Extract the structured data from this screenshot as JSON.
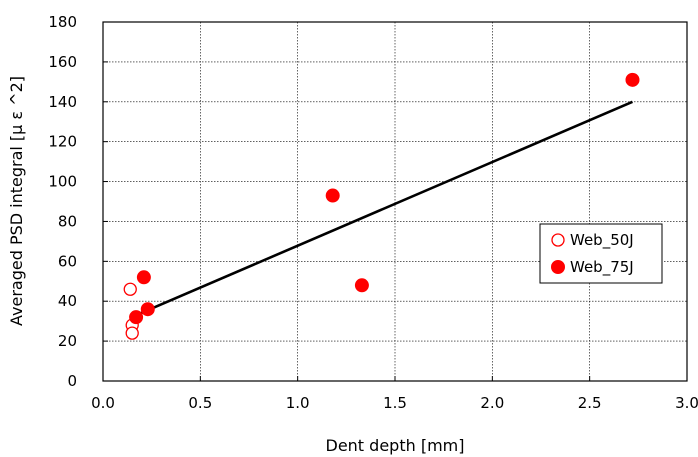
{
  "chart_data": {
    "type": "scatter",
    "title": "",
    "xlabel": "Dent depth [mm]",
    "ylabel": "Averaged PSD integral [μ ε ^2]",
    "xlim": [
      0,
      3
    ],
    "ylim": [
      0,
      180
    ],
    "x_ticks": [
      "0.0",
      "0.5",
      "1.0",
      "1.5",
      "2.0",
      "2.5",
      "3.0"
    ],
    "y_ticks": [
      "0",
      "20",
      "40",
      "60",
      "80",
      "100",
      "120",
      "140",
      "160",
      "180"
    ],
    "grid": true,
    "legend_position": "right",
    "series": [
      {
        "name": "Web_50J",
        "marker": "open-circle",
        "color": "#ff0000",
        "points": [
          {
            "x": 0.14,
            "y": 46
          },
          {
            "x": 0.15,
            "y": 28
          },
          {
            "x": 0.15,
            "y": 24
          }
        ]
      },
      {
        "name": "Web_75J",
        "marker": "filled-circle",
        "color": "#ff0000",
        "points": [
          {
            "x": 0.17,
            "y": 32
          },
          {
            "x": 0.21,
            "y": 52
          },
          {
            "x": 0.23,
            "y": 36
          },
          {
            "x": 1.18,
            "y": 93
          },
          {
            "x": 1.33,
            "y": 48
          },
          {
            "x": 2.72,
            "y": 151
          }
        ]
      }
    ],
    "trend_line": {
      "color": "#000000",
      "points": [
        {
          "x": 0.17,
          "y": 33
        },
        {
          "x": 2.72,
          "y": 140
        }
      ]
    }
  }
}
